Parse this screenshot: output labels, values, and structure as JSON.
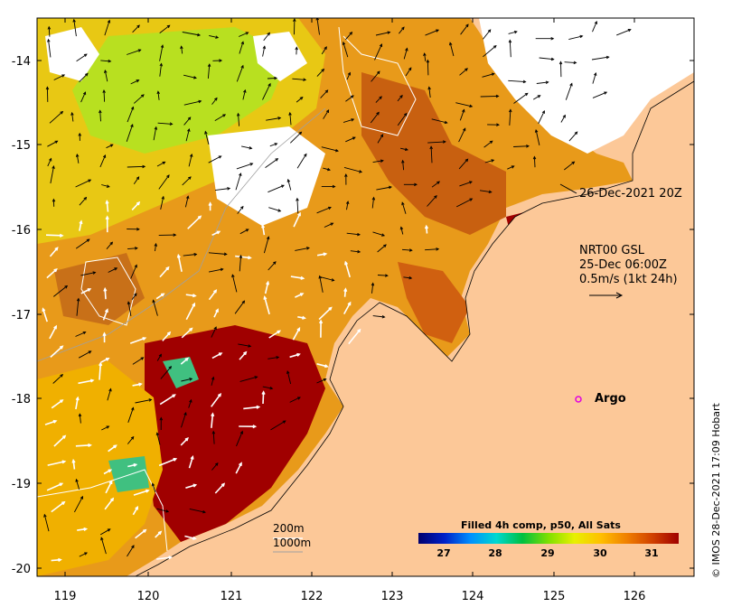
{
  "map": {
    "axes": {
      "lon_ticks": [
        "119",
        "120",
        "121",
        "122",
        "123",
        "124",
        "125",
        "126"
      ],
      "lat_ticks": [
        "-14",
        "-15",
        "-16",
        "-17",
        "-18",
        "-19",
        "-20"
      ]
    },
    "annotations": {
      "timestamp": "26-Dec-2021 20Z",
      "current_source": "NRT00 GSL",
      "current_time": "25-Dec 06:00Z",
      "current_scale": "0.5m/s (1kt 24h)"
    },
    "argo_label": "Argo",
    "depth_legend": [
      "200m",
      "1000m"
    ],
    "colorbar": {
      "title": "Filled 4h comp, p50, All Sats",
      "labels": [
        "27",
        "28",
        "29",
        "30",
        "31"
      ],
      "colors": [
        "#00006e",
        "#0020c8",
        "#0090ff",
        "#00d8d0",
        "#00c040",
        "#80e000",
        "#e8f000",
        "#ffc000",
        "#f08000",
        "#d04000",
        "#a00000"
      ]
    },
    "copyright": "© IMOS 28-Dec-2021 17:09 Hobart",
    "colors": {
      "land": "#fcc898",
      "argo_marker": "#e000e0",
      "arrows": "#000000",
      "isobaths": "#ffffff"
    }
  }
}
